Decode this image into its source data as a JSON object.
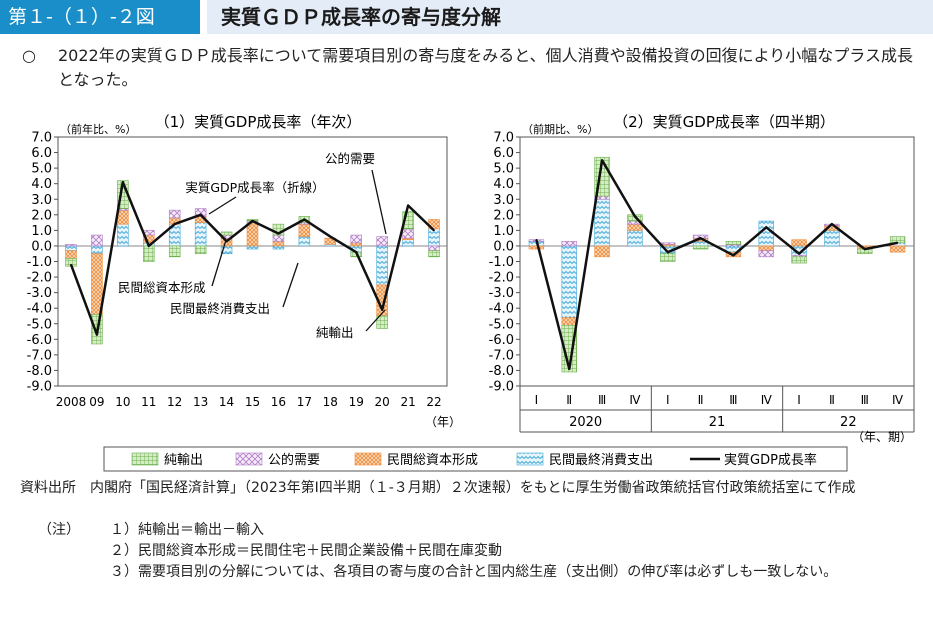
{
  "header": {
    "badge": "第１-（１）-２図",
    "title": "実質ＧＤＰ成長率の寄与度分解"
  },
  "lead": {
    "marker": "○",
    "text": "2022年の実質ＧＤＰ成長率について需要項目別の寄与度をみると、個人消費や設備投資の回復により小幅なプラス成長となった。"
  },
  "colors": {
    "net_exports": "#6ab04c",
    "public": "#b07cc6",
    "investment": "#ee8a3a",
    "consumption": "#3fa9d8",
    "line": "#111111"
  },
  "legend": [
    "純輸出",
    "公的需要",
    "民間総資本形成",
    "民間最終消費支出",
    "実質GDP成長率"
  ],
  "chart_data": [
    {
      "type": "bar",
      "title": "（1）実質GDP成長率（年次）",
      "ylabel": "（前年比、%）",
      "xunit": "（年）",
      "ylim": [
        -9.0,
        7.0
      ],
      "yticks": [
        "7.0",
        "6.0",
        "5.0",
        "4.0",
        "3.0",
        "2.0",
        "1.0",
        "0.0",
        "-1.0",
        "-2.0",
        "-3.0",
        "-4.0",
        "-5.0",
        "-6.0",
        "-7.0",
        "-8.0",
        "-9.0"
      ],
      "categories": [
        "2008",
        "09",
        "10",
        "11",
        "12",
        "13",
        "14",
        "15",
        "16",
        "17",
        "18",
        "19",
        "20",
        "21",
        "22"
      ],
      "series": [
        {
          "name": "民間最終消費支出",
          "values": [
            -0.3,
            -0.5,
            1.4,
            0.2,
            1.4,
            1.5,
            -0.5,
            -0.2,
            -0.2,
            0.6,
            0.1,
            -0.4,
            -2.5,
            0.4,
            1.1
          ]
        },
        {
          "name": "民間総資本形成",
          "values": [
            -0.5,
            -3.9,
            0.9,
            0.5,
            0.4,
            0.4,
            0.5,
            1.5,
            0.3,
            0.8,
            0.4,
            0.2,
            -2.0,
            0.1,
            0.6
          ]
        },
        {
          "name": "公的需要",
          "values": [
            0.1,
            0.7,
            0.1,
            0.3,
            0.5,
            0.5,
            0.2,
            0.1,
            0.4,
            0.1,
            0.0,
            0.5,
            0.6,
            0.6,
            -0.3
          ]
        },
        {
          "name": "純輸出",
          "values": [
            -0.5,
            -1.9,
            1.8,
            -1.0,
            -0.7,
            -0.5,
            0.2,
            0.1,
            0.7,
            0.4,
            0.0,
            -0.3,
            -0.8,
            1.1,
            -0.4
          ]
        }
      ],
      "line": {
        "name": "実質GDP成長率（折線）",
        "values": [
          -1.2,
          -5.7,
          4.1,
          0.0,
          1.4,
          2.0,
          0.3,
          1.6,
          0.8,
          1.7,
          0.6,
          -0.4,
          -4.1,
          2.6,
          1.0
        ]
      },
      "annotations": [
        "公的需要",
        "実質GDP成長率（折線）",
        "民間総資本形成",
        "民間最終消費支出",
        "純輸出"
      ]
    },
    {
      "type": "bar",
      "title": "（2）実質GDP成長率（四半期）",
      "ylabel": "（前期比、%）",
      "xunit": "（年、期）",
      "ylim": [
        -9.0,
        7.0
      ],
      "yticks": [
        "7.0",
        "6.0",
        "5.0",
        "4.0",
        "3.0",
        "2.0",
        "1.0",
        "0.0",
        "-1.0",
        "-2.0",
        "-3.0",
        "-4.0",
        "-5.0",
        "-6.0",
        "-7.0",
        "-8.0",
        "-9.0"
      ],
      "categories": [
        "Ⅰ",
        "Ⅱ",
        "Ⅲ",
        "Ⅳ",
        "Ⅰ",
        "Ⅱ",
        "Ⅲ",
        "Ⅳ",
        "Ⅰ",
        "Ⅱ",
        "Ⅲ",
        "Ⅳ"
      ],
      "years": [
        "2020",
        "21",
        "22"
      ],
      "series": [
        {
          "name": "民間最終消費支出",
          "values": [
            0.3,
            -4.6,
            3.0,
            1.0,
            -0.5,
            0.3,
            -0.4,
            1.6,
            -0.6,
            1.0,
            0.0,
            0.2
          ]
        },
        {
          "name": "民間総資本形成",
          "values": [
            -0.2,
            -0.5,
            -0.7,
            0.4,
            0.1,
            0.2,
            -0.3,
            -0.3,
            0.4,
            0.3,
            -0.2,
            -0.4
          ]
        },
        {
          "name": "公的需要",
          "values": [
            0.1,
            0.3,
            0.2,
            0.2,
            0.1,
            0.2,
            0.1,
            -0.4,
            -0.1,
            0.1,
            0.0,
            0.0
          ]
        },
        {
          "name": "純輸出",
          "values": [
            0.0,
            -3.0,
            2.5,
            0.4,
            -0.5,
            -0.2,
            0.2,
            0.0,
            -0.4,
            0.0,
            -0.3,
            0.4
          ]
        }
      ],
      "line": {
        "name": "実質GDP成長率",
        "values": [
          0.4,
          -7.9,
          5.5,
          1.9,
          -0.4,
          0.5,
          -0.6,
          1.2,
          -0.5,
          1.4,
          -0.2,
          0.2
        ]
      }
    }
  ],
  "notes": {
    "source_label": "資料出所",
    "source_text": "内閣府「国民経済計算」（2023年第Ⅰ四半期（１-３月期）２次速報）をもとに厚生労働省政策統括官付政策統括室にて作成",
    "note_label": "（注）",
    "items": [
      "１）純輸出＝輸出－輸入",
      "２）民間総資本形成＝民間住宅＋民間企業設備＋民間在庫変動",
      "３）需要項目別の分解については、各項目の寄与度の合計と国内総生産（支出側）の伸び率は必ずしも一致しない。"
    ]
  }
}
